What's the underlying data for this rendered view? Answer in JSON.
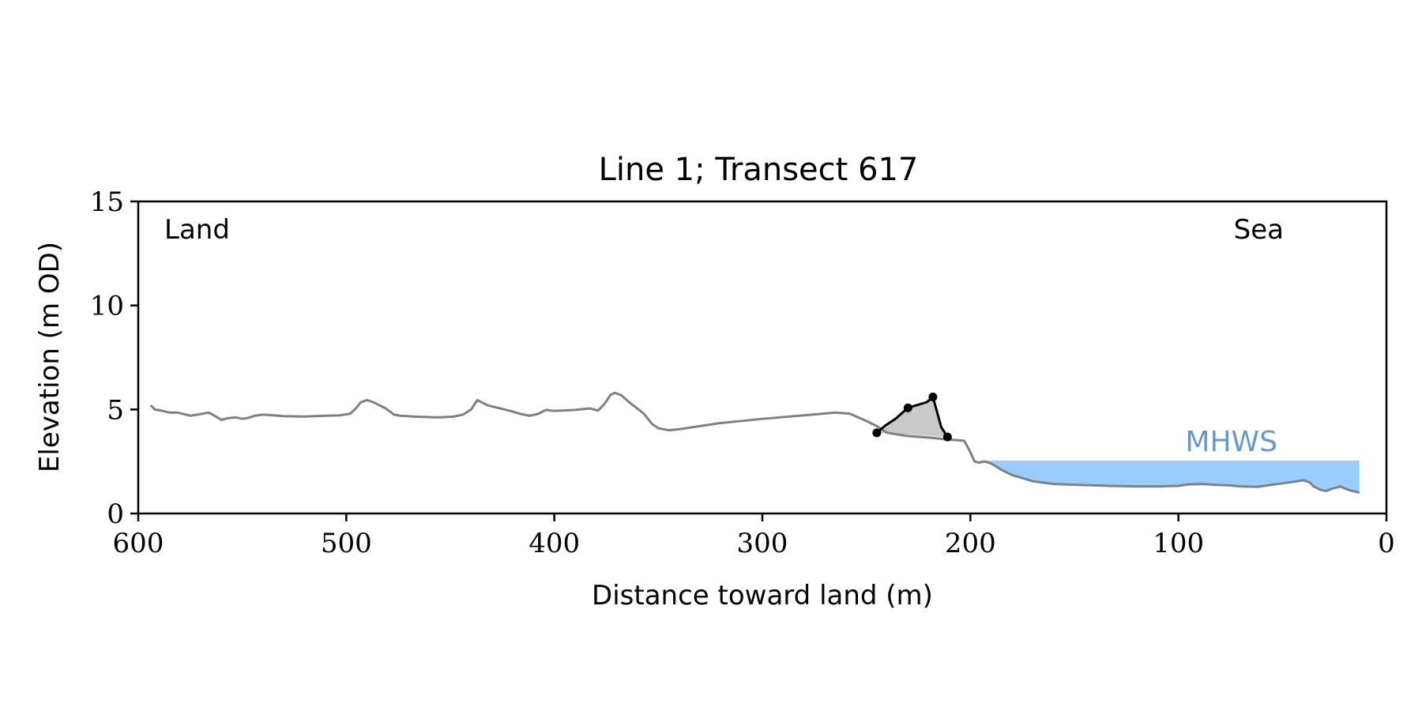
{
  "chart_data": {
    "type": "line",
    "title": "Line 1; Transect 617",
    "xlabel": "Distance toward land (m)",
    "ylabel": "Elevation (m OD)",
    "xlim": [
      600,
      0
    ],
    "ylim": [
      0,
      15
    ],
    "x_ticks": [
      600,
      500,
      400,
      300,
      200,
      100,
      0
    ],
    "y_ticks": [
      0,
      5,
      10,
      15
    ],
    "grid": false,
    "annotations": {
      "land": "Land",
      "sea": "Sea",
      "mhws": "MHWS"
    },
    "colors": {
      "profile": "#808080",
      "dune": "#000000",
      "dune_fill": "#c8c8c8",
      "water": "#99ccff",
      "mhws_text": "#6699cc"
    },
    "mhws_level": 2.55,
    "water_x_range": [
      195,
      13
    ],
    "profile": {
      "x": [
        594,
        592,
        589,
        585,
        581,
        575,
        570,
        566,
        563,
        560,
        557,
        553,
        550,
        547,
        544,
        540,
        535,
        530,
        520,
        510,
        503,
        498,
        495,
        493,
        490,
        487,
        484,
        481,
        477,
        474,
        471,
        466,
        456,
        449,
        444,
        440,
        437,
        435,
        432,
        428,
        424,
        420,
        416,
        412,
        408,
        404,
        400,
        390,
        383,
        379,
        376,
        373,
        371,
        368,
        364,
        357,
        353,
        350,
        345,
        340,
        330,
        320,
        300,
        280,
        265,
        258,
        250,
        245,
        240,
        230,
        220,
        210,
        203,
        200,
        198,
        196,
        193,
        190,
        185,
        180,
        175,
        170,
        165,
        160,
        150,
        140,
        130,
        120,
        110,
        100,
        95,
        88,
        83,
        75,
        70,
        62,
        55,
        50,
        45,
        40,
        37,
        35,
        32,
        29,
        26,
        22,
        20,
        17,
        15,
        13
      ],
      "y": [
        5.2,
        5.0,
        4.95,
        4.85,
        4.85,
        4.7,
        4.78,
        4.85,
        4.68,
        4.5,
        4.58,
        4.62,
        4.55,
        4.6,
        4.7,
        4.75,
        4.72,
        4.68,
        4.66,
        4.7,
        4.72,
        4.8,
        5.1,
        5.35,
        5.45,
        5.35,
        5.2,
        5.05,
        4.75,
        4.7,
        4.68,
        4.65,
        4.62,
        4.65,
        4.75,
        5.0,
        5.45,
        5.35,
        5.2,
        5.1,
        5.0,
        4.9,
        4.78,
        4.7,
        4.78,
        4.98,
        4.93,
        4.98,
        5.05,
        4.95,
        5.25,
        5.7,
        5.8,
        5.7,
        5.35,
        4.8,
        4.3,
        4.1,
        4.0,
        4.05,
        4.2,
        4.35,
        4.55,
        4.72,
        4.85,
        4.8,
        4.45,
        4.2,
        3.88,
        3.72,
        3.65,
        3.55,
        3.5,
        2.95,
        2.5,
        2.45,
        2.5,
        2.4,
        2.1,
        1.85,
        1.7,
        1.55,
        1.48,
        1.42,
        1.38,
        1.35,
        1.32,
        1.3,
        1.3,
        1.33,
        1.4,
        1.42,
        1.38,
        1.35,
        1.3,
        1.28,
        1.38,
        1.45,
        1.52,
        1.6,
        1.5,
        1.3,
        1.15,
        1.08,
        1.2,
        1.3,
        1.2,
        1.1,
        1.05,
        1.0
      ]
    },
    "dune": {
      "x": [
        245,
        241,
        236,
        230,
        226,
        221,
        218,
        214,
        211
      ],
      "y": [
        3.88,
        4.22,
        4.55,
        5.08,
        5.2,
        5.35,
        5.6,
        4.15,
        3.68
      ]
    },
    "dune_markers": {
      "x": [
        245,
        230,
        218,
        211
      ],
      "y": [
        3.88,
        5.08,
        5.6,
        3.68
      ]
    }
  }
}
